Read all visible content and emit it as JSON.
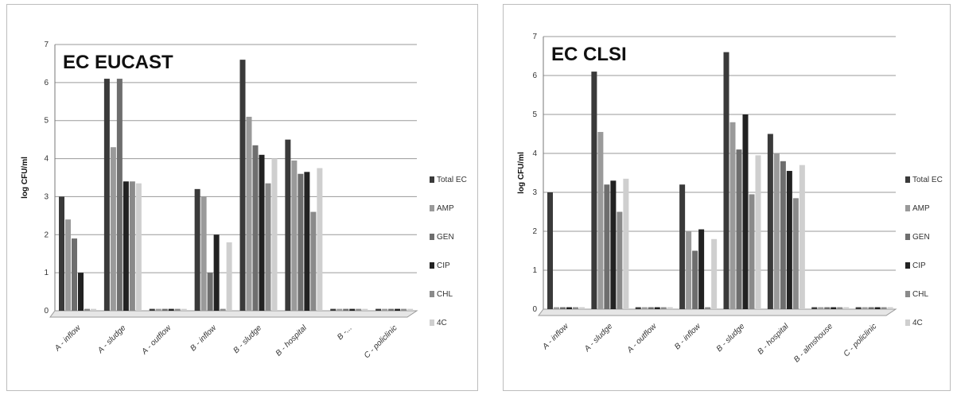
{
  "series_colors": [
    "#3a3a3a",
    "#9a9a9a",
    "#6e6e6e",
    "#222222",
    "#8a8a8a",
    "#cfcfcf"
  ],
  "chart_data": [
    {
      "type": "bar",
      "title": "EC EUCAST",
      "ylabel": "log CFU/ml",
      "ylim": [
        0,
        7
      ],
      "yticks": [
        "0",
        "1",
        "2",
        "3",
        "4",
        "5",
        "6",
        "7"
      ],
      "grid": true,
      "legend_position": "right",
      "categories": [
        "A - inflow",
        "A - sludge",
        "A - outflow",
        "B - inflow",
        "B - sludge",
        "B - hospital",
        "B -...",
        "C - policlinic"
      ],
      "series": [
        {
          "name": "Total EC",
          "values": [
            3.0,
            6.1,
            0.05,
            3.2,
            6.6,
            4.5,
            0.05,
            0.05
          ]
        },
        {
          "name": "AMP",
          "values": [
            2.4,
            4.3,
            0.05,
            3.0,
            5.1,
            3.95,
            0.05,
            0.05
          ]
        },
        {
          "name": "GEN",
          "values": [
            1.9,
            6.1,
            0.05,
            1.0,
            4.35,
            3.6,
            0.05,
            0.05
          ]
        },
        {
          "name": "CIP",
          "values": [
            1.0,
            3.4,
            0.05,
            2.0,
            4.1,
            3.65,
            0.05,
            0.05
          ]
        },
        {
          "name": "CHL",
          "values": [
            0.05,
            3.4,
            0.05,
            0.05,
            3.35,
            2.6,
            0.05,
            0.05
          ]
        },
        {
          "name": "4C",
          "values": [
            0.05,
            3.35,
            0.05,
            1.8,
            4.0,
            3.75,
            0.05,
            0.05
          ]
        }
      ]
    },
    {
      "type": "bar",
      "title": "EC CLSI",
      "ylabel": "log CFU/ml",
      "ylim": [
        0,
        7
      ],
      "yticks": [
        "0",
        "1",
        "2",
        "3",
        "4",
        "5",
        "6",
        "7"
      ],
      "grid": true,
      "legend_position": "right",
      "categories": [
        "A - inflow",
        "A - sludge",
        "A - outflow",
        "B - inflow",
        "B - sludge",
        "B - hospital",
        "B - almshouse",
        "C - policlinic"
      ],
      "series": [
        {
          "name": "Total EC",
          "values": [
            3.0,
            6.1,
            0.05,
            3.2,
            6.6,
            4.5,
            0.05,
            0.05
          ]
        },
        {
          "name": "AMP",
          "values": [
            0.05,
            4.55,
            0.05,
            2.0,
            4.8,
            4.0,
            0.05,
            0.05
          ]
        },
        {
          "name": "GEN",
          "values": [
            0.05,
            3.2,
            0.05,
            1.5,
            4.1,
            3.8,
            0.05,
            0.05
          ]
        },
        {
          "name": "CIP",
          "values": [
            0.05,
            3.3,
            0.05,
            2.05,
            5.0,
            3.55,
            0.05,
            0.05
          ]
        },
        {
          "name": "CHL",
          "values": [
            0.05,
            2.5,
            0.05,
            0.05,
            2.95,
            2.85,
            0.05,
            0.05
          ]
        },
        {
          "name": "4C",
          "values": [
            0.05,
            3.35,
            0.05,
            1.8,
            3.95,
            3.7,
            0.05,
            0.05
          ]
        }
      ]
    }
  ]
}
